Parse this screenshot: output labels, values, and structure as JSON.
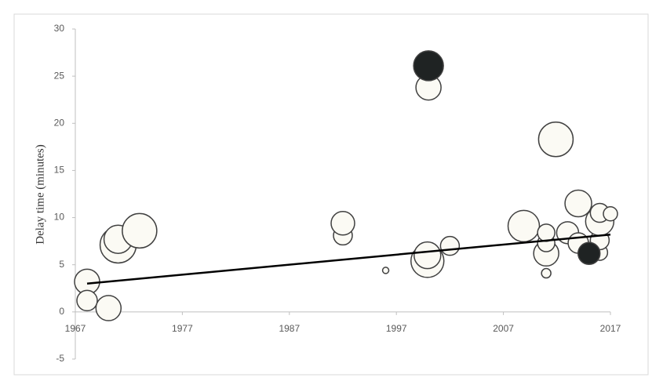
{
  "chart_data": {
    "type": "scatter",
    "y_label": "Delay time (minutes)",
    "xlim": [
      1967,
      2017
    ],
    "xticks": [
      1967,
      1977,
      1987,
      1997,
      2007,
      2017
    ],
    "ylim": [
      -5,
      30
    ],
    "yticks": [
      -5,
      0,
      5,
      10,
      15,
      20,
      25,
      30
    ],
    "series": [
      {
        "color": "#fbfaf4",
        "x": [
          1968.1,
          1968.1,
          1970.1,
          1971.0,
          1971.0,
          1973.0,
          1992.0,
          1992.0,
          1996.0,
          1999.9,
          1999.9,
          2000.0,
          2002.0,
          2008.9,
          2011.0,
          2011.0,
          2011.0,
          2011.0,
          2011.9,
          2013.0,
          2014.0,
          2014.0,
          2016.0,
          2016.0,
          2016.0,
          2016.0,
          2017.0
        ],
        "values": [
          3.2,
          1.2,
          0.4,
          7.1,
          7.7,
          8.6,
          8.1,
          9.4,
          4.4,
          5.4,
          6.0,
          23.8,
          7.0,
          9.1,
          4.1,
          6.2,
          7.3,
          8.4,
          18.3,
          8.4,
          11.5,
          7.3,
          6.3,
          7.6,
          9.6,
          10.5,
          10.4
        ],
        "sizes": [
          16,
          13,
          16,
          23,
          18,
          22,
          12,
          15,
          4,
          21,
          17,
          16,
          12,
          20,
          6,
          16,
          11,
          11,
          22,
          14,
          17,
          13,
          10,
          12,
          18,
          12,
          9
        ]
      },
      {
        "color": "#1f2323",
        "x": [
          2000.0,
          2015.0
        ],
        "values": [
          26.1,
          6.2
        ],
        "sizes": [
          19,
          14
        ]
      }
    ],
    "trendline": {
      "color": "#000000",
      "x": [
        1968.1,
        2017.0
      ],
      "values": [
        3.0,
        8.2
      ]
    }
  }
}
